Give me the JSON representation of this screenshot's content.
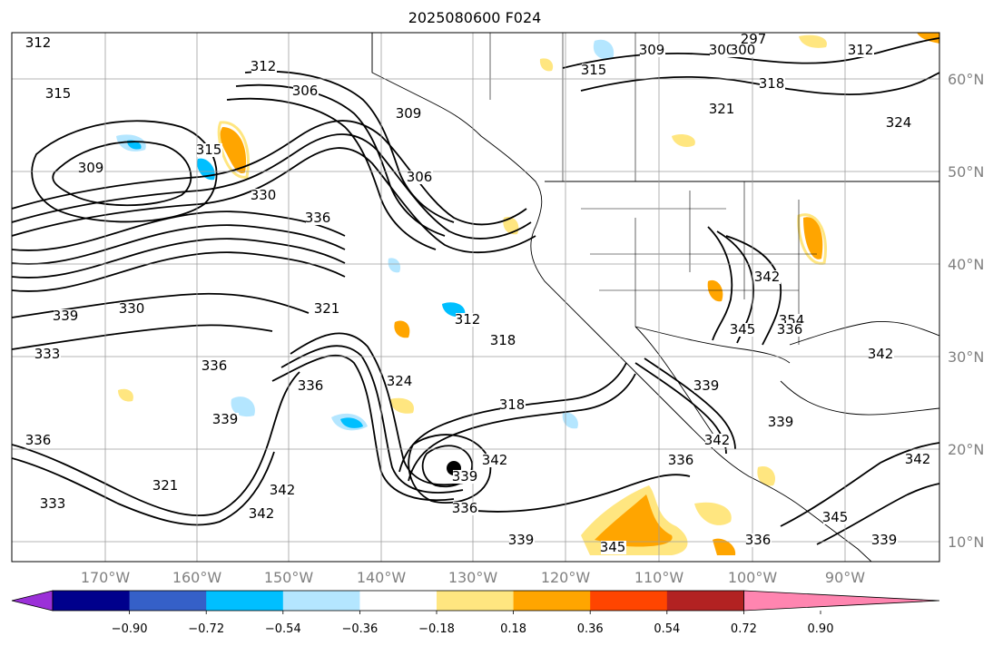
{
  "title": "2025080600 F024",
  "map": {
    "lon_ticks": [
      "170°W",
      "160°W",
      "150°W",
      "140°W",
      "130°W",
      "120°W",
      "110°W",
      "100°W",
      "90°W"
    ],
    "lat_ticks": [
      "60°N",
      "50°N",
      "40°N",
      "30°N",
      "20°N",
      "10°N"
    ],
    "contour_labels": [
      "312",
      "315",
      "309",
      "312",
      "306",
      "309",
      "306",
      "315",
      "309",
      "300",
      "297",
      "300",
      "312",
      "318",
      "321",
      "324",
      "315",
      "336",
      "330",
      "339",
      "330",
      "333",
      "321",
      "312",
      "318",
      "336",
      "336",
      "324",
      "339",
      "336",
      "318",
      "342",
      "339",
      "342",
      "336",
      "342",
      "321",
      "333",
      "336",
      "339",
      "345",
      "342",
      "336",
      "345",
      "339",
      "342",
      "345",
      "354",
      "336",
      "339",
      "342",
      "342",
      "339"
    ],
    "land_color": "#ffffff",
    "contour_color": "#000000",
    "marker": "filled-circle"
  },
  "colorbar": {
    "ticks": [
      "−0.90",
      "−0.72",
      "−0.54",
      "−0.36",
      "−0.18",
      "0.18",
      "0.36",
      "0.54",
      "0.72",
      "0.90"
    ],
    "colors": [
      "#9b30d8",
      "#00008c",
      "#3560c8",
      "#00bfff",
      "#b4e6ff",
      "#ffffff",
      "#ffe680",
      "#ffa500",
      "#ff4500",
      "#b22222",
      "#ff85b0"
    ]
  }
}
